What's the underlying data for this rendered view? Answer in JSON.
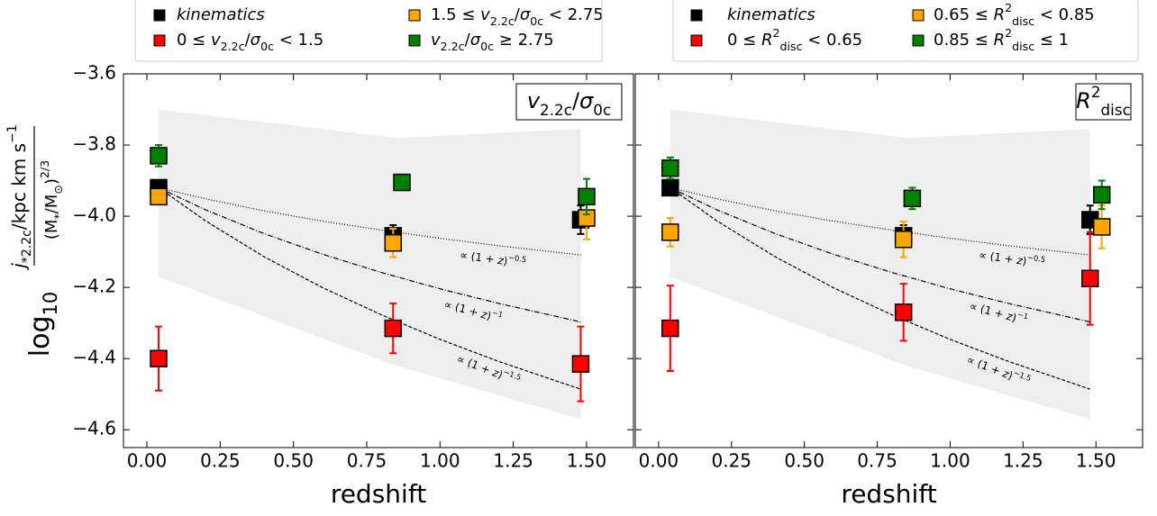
{
  "chart_data": [
    {
      "type": "scatter",
      "ylabel": {
        "prefix": [
          {
            "text": "log"
          },
          {
            "text": "10",
            "style": "sub"
          }
        ],
        "numerator": [
          {
            "text": "j",
            "style": "italic"
          },
          {
            "text": "*2.2c",
            "style": "sub"
          },
          {
            "text": "/kpc km s"
          },
          {
            "text": "−1",
            "style": "sup"
          }
        ],
        "denominator": [
          {
            "text": "(M"
          },
          {
            "text": "*",
            "style": "sub"
          },
          {
            "text": "/M"
          },
          {
            "text": "⊙",
            "style": "sub"
          },
          {
            "text": ")"
          },
          {
            "text": "2/3",
            "style": "sup"
          }
        ]
      },
      "xlabel": "redshift",
      "panel_label": [
        {
          "text": "v",
          "style": "italic"
        },
        {
          "text": "2.2c",
          "style": "sub"
        },
        {
          "text": "/"
        },
        {
          "text": "σ",
          "style": "italic"
        },
        {
          "text": "0c",
          "style": "sub"
        }
      ],
      "legend_position": "above",
      "xlim": [
        -0.08,
        1.66
      ],
      "ylim": [
        -4.65,
        -3.6
      ],
      "xticks": [
        {
          "value": 0,
          "label": "0.00"
        },
        {
          "value": 0.25,
          "label": "0.25"
        },
        {
          "value": 0.5,
          "label": "0.50"
        },
        {
          "value": 0.75,
          "label": "0.75"
        },
        {
          "value": 1,
          "label": "1.00"
        },
        {
          "value": 1.25,
          "label": "1.25"
        },
        {
          "value": 1.5,
          "label": "1.50"
        }
      ],
      "yticks": [
        {
          "value": -3.6,
          "label": "−3.6"
        },
        {
          "value": -3.8,
          "label": "−3.8"
        },
        {
          "value": -4.0,
          "label": "−4.0"
        },
        {
          "value": -4.2,
          "label": "−4.2"
        },
        {
          "value": -4.4,
          "label": "−4.4"
        },
        {
          "value": -4.6,
          "label": "−4.6"
        }
      ],
      "band": {
        "color": "#eeeeee",
        "x": [
          0.04,
          0.85,
          1.48
        ],
        "upper": [
          -3.7,
          -3.78,
          -3.755
        ],
        "lower": [
          -4.17,
          -4.42,
          -4.57
        ]
      },
      "lines": [
        {
          "dash": "1,2",
          "label": [
            {
              "text": "∝ (1 + "
            },
            {
              "text": "z",
              "style": "italic"
            },
            {
              "text": ")"
            },
            {
              "text": "−0.5",
              "style": "sup"
            }
          ],
          "x": [
            0.04,
            0.2,
            0.4,
            0.6,
            0.8,
            1.0,
            1.2,
            1.48
          ],
          "values": [
            -3.92,
            -3.951,
            -3.985,
            -4.014,
            -4.039,
            -4.062,
            -4.083,
            -4.109
          ]
        },
        {
          "dash": "6,2,1,2",
          "label": [
            {
              "text": "∝ (1 + "
            },
            {
              "text": "z",
              "style": "italic"
            },
            {
              "text": ")"
            },
            {
              "text": "−1",
              "style": "sup"
            }
          ],
          "x": [
            0.04,
            0.2,
            0.4,
            0.6,
            0.8,
            1.0,
            1.2,
            1.48
          ],
          "values": [
            -3.92,
            -3.982,
            -4.049,
            -4.107,
            -4.158,
            -4.204,
            -4.245,
            -4.297
          ]
        },
        {
          "dash": "4,2",
          "label": [
            {
              "text": "∝ (1 + "
            },
            {
              "text": "z",
              "style": "italic"
            },
            {
              "text": ")"
            },
            {
              "text": "−1.5",
              "style": "sup"
            }
          ],
          "x": [
            0.04,
            0.2,
            0.4,
            0.6,
            0.8,
            1.0,
            1.2,
            1.48
          ],
          "values": [
            -3.92,
            -4.013,
            -4.114,
            -4.201,
            -4.277,
            -4.346,
            -4.408,
            -4.486
          ]
        }
      ],
      "series": [
        {
          "name": [
            {
              "text": "kinematics",
              "style": "italic"
            }
          ],
          "color": "#000000",
          "x": [
            0.04,
            0.84,
            1.48
          ],
          "values": [
            -3.92,
            -4.055,
            -4.01
          ],
          "errors": [
            0.0,
            0.03,
            0.04
          ]
        },
        {
          "name": [
            {
              "text": "0 ≤ "
            },
            {
              "text": "v",
              "style": "italic"
            },
            {
              "text": "2.2c",
              "style": "sub"
            },
            {
              "text": "/"
            },
            {
              "text": "σ",
              "style": "italic"
            },
            {
              "text": "0c",
              "style": "sub"
            },
            {
              "text": " < 1.5"
            }
          ],
          "color": "#ff0000",
          "x": [
            0.04,
            0.84,
            1.48
          ],
          "values": [
            -4.4,
            -4.315,
            -4.415
          ],
          "errors": [
            0.09,
            0.07,
            0.105
          ]
        },
        {
          "name": [
            {
              "text": "1.5 ≤ "
            },
            {
              "text": "v",
              "style": "italic"
            },
            {
              "text": "2.2c",
              "style": "sub"
            },
            {
              "text": "/"
            },
            {
              "text": "σ",
              "style": "italic"
            },
            {
              "text": "0c",
              "style": "sub"
            },
            {
              "text": " < 2.75"
            }
          ],
          "color": "#ffa500",
          "x": [
            0.04,
            0.84,
            1.5
          ],
          "values": [
            -3.945,
            -4.075,
            -4.005
          ],
          "errors": [
            0.02,
            0.04,
            0.06
          ]
        },
        {
          "name": [
            {
              "text": "v",
              "style": "italic"
            },
            {
              "text": "2.2c",
              "style": "sub"
            },
            {
              "text": "/"
            },
            {
              "text": "σ",
              "style": "italic"
            },
            {
              "text": "0c",
              "style": "sub"
            },
            {
              "text": " ≥ 2.75"
            }
          ],
          "color": "#008000",
          "x": [
            0.04,
            0.87,
            1.5
          ],
          "values": [
            -3.83,
            -3.905,
            -3.945
          ],
          "errors": [
            0.03,
            0.0,
            0.05
          ]
        }
      ]
    },
    {
      "type": "scatter",
      "xlabel": "redshift",
      "panel_label": [
        {
          "text": "R",
          "style": "italic"
        },
        {
          "text": "2",
          "style": "sup"
        },
        {
          "text": "disc",
          "style": "sub"
        }
      ],
      "legend_position": "above",
      "xlim": [
        -0.08,
        1.66
      ],
      "ylim": [
        -4.65,
        -3.6
      ],
      "xticks": [
        {
          "value": 0,
          "label": "0.00"
        },
        {
          "value": 0.25,
          "label": "0.25"
        },
        {
          "value": 0.5,
          "label": "0.50"
        },
        {
          "value": 0.75,
          "label": "0.75"
        },
        {
          "value": 1,
          "label": "1.00"
        },
        {
          "value": 1.25,
          "label": "1.25"
        },
        {
          "value": 1.5,
          "label": "1.50"
        }
      ],
      "yticks": [
        -3.6,
        -3.8,
        -4.0,
        -4.2,
        -4.4,
        -4.6
      ],
      "band": {
        "color": "#eeeeee",
        "x": [
          0.04,
          0.85,
          1.48
        ],
        "upper": [
          -3.7,
          -3.78,
          -3.755
        ],
        "lower": [
          -4.17,
          -4.42,
          -4.57
        ]
      },
      "lines": [
        {
          "dash": "1,2",
          "label": [
            {
              "text": "∝ (1 + "
            },
            {
              "text": "z",
              "style": "italic"
            },
            {
              "text": ")"
            },
            {
              "text": "−0.5",
              "style": "sup"
            }
          ],
          "x": [
            0.04,
            0.2,
            0.4,
            0.6,
            0.8,
            1.0,
            1.2,
            1.48
          ],
          "values": [
            -3.92,
            -3.951,
            -3.985,
            -4.014,
            -4.039,
            -4.062,
            -4.083,
            -4.109
          ]
        },
        {
          "dash": "6,2,1,2",
          "label": [
            {
              "text": "∝ (1 + "
            },
            {
              "text": "z",
              "style": "italic"
            },
            {
              "text": ")"
            },
            {
              "text": "−1",
              "style": "sup"
            }
          ],
          "x": [
            0.04,
            0.2,
            0.4,
            0.6,
            0.8,
            1.0,
            1.2,
            1.48
          ],
          "values": [
            -3.92,
            -3.982,
            -4.049,
            -4.107,
            -4.158,
            -4.204,
            -4.245,
            -4.297
          ]
        },
        {
          "dash": "4,2",
          "label": [
            {
              "text": "∝ (1 + "
            },
            {
              "text": "z",
              "style": "italic"
            },
            {
              "text": ")"
            },
            {
              "text": "−1.5",
              "style": "sup"
            }
          ],
          "x": [
            0.04,
            0.2,
            0.4,
            0.6,
            0.8,
            1.0,
            1.2,
            1.48
          ],
          "values": [
            -3.92,
            -4.013,
            -4.114,
            -4.201,
            -4.277,
            -4.346,
            -4.408,
            -4.486
          ]
        }
      ],
      "series": [
        {
          "name": [
            {
              "text": "kinematics",
              "style": "italic"
            }
          ],
          "color": "#000000",
          "x": [
            0.04,
            0.84,
            1.48
          ],
          "values": [
            -3.92,
            -4.055,
            -4.01
          ],
          "errors": [
            0.0,
            0.03,
            0.04
          ]
        },
        {
          "name": [
            {
              "text": "0 ≤ "
            },
            {
              "text": "R",
              "style": "italic"
            },
            {
              "text": "2",
              "style": "sup"
            },
            {
              "text": "disc",
              "style": "sub"
            },
            {
              "text": " < 0.65"
            }
          ],
          "color": "#ff0000",
          "x": [
            0.04,
            0.84,
            1.48
          ],
          "values": [
            -4.315,
            -4.27,
            -4.175
          ],
          "errors": [
            0.12,
            0.08,
            0.13
          ]
        },
        {
          "name": [
            {
              "text": "0.65 ≤ "
            },
            {
              "text": "R",
              "style": "italic"
            },
            {
              "text": "2",
              "style": "sup"
            },
            {
              "text": "disc",
              "style": "sub"
            },
            {
              "text": " < 0.85"
            }
          ],
          "color": "#ffa500",
          "x": [
            0.04,
            0.84,
            1.52
          ],
          "values": [
            -4.045,
            -4.065,
            -4.03
          ],
          "errors": [
            0.04,
            0.05,
            0.06
          ]
        },
        {
          "name": [
            {
              "text": "0.85 ≤ "
            },
            {
              "text": "R",
              "style": "italic"
            },
            {
              "text": "2",
              "style": "sup"
            },
            {
              "text": "disc",
              "style": "sub"
            },
            {
              "text": " ≤ 1"
            }
          ],
          "color": "#008000",
          "x": [
            0.04,
            0.87,
            1.52
          ],
          "values": [
            -3.865,
            -3.95,
            -3.94
          ],
          "errors": [
            0.03,
            0.03,
            0.04
          ]
        }
      ]
    }
  ]
}
